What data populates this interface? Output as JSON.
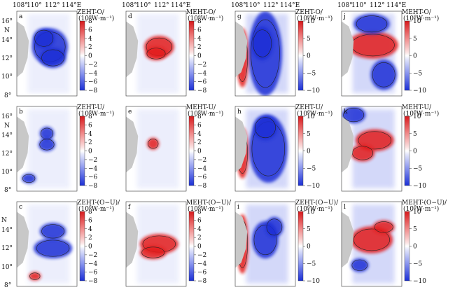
{
  "figure": {
    "lon_ticks": [
      "108°",
      "110°",
      "112°",
      "114°E"
    ],
    "lat_ticks": [
      "16°",
      "14°",
      "12°",
      "10°",
      "8°"
    ],
    "lat_ticks_top": [
      "16°",
      "14°",
      "12°",
      "10°"
    ],
    "lat_unit": "N",
    "colors": {
      "neg": "#1b2fd6",
      "pos": "#e31a1c",
      "land": "#c8c8c8"
    }
  },
  "chart_data": [
    {
      "type": "heatmap",
      "panel": "a",
      "title_line1": "ZEHT-O/",
      "title_line2": "(10",
      "exp": "6",
      "title_unit": "W·m⁻¹)",
      "cbar_ticks": [
        "8",
        "6",
        "4",
        "2",
        "0",
        "−2",
        "−4",
        "−6",
        "−8"
      ],
      "vmin": -8,
      "vmax": 8,
      "ylim": [
        8,
        17
      ],
      "xlim": [
        107.5,
        115
      ]
    },
    {
      "type": "heatmap",
      "panel": "d",
      "title_line1": "MEHT-O/",
      "title_line2": "(10",
      "exp": "6",
      "title_unit": "W·m⁻¹)",
      "cbar_ticks": [
        "8",
        "6",
        "4",
        "2",
        "0",
        "−2",
        "−4",
        "−6",
        "−8"
      ],
      "vmin": -8,
      "vmax": 8
    },
    {
      "type": "heatmap",
      "panel": "g",
      "title_line1": "ZEHT-O/",
      "title_line2": "(10",
      "exp": "6",
      "title_unit": "W·m⁻¹)",
      "cbar_ticks": [
        "10",
        "5",
        "0",
        "−5",
        "−10"
      ],
      "vmin": -10,
      "vmax": 10
    },
    {
      "type": "heatmap",
      "panel": "j",
      "title_line1": "MEHT-O/",
      "title_line2": "(10",
      "exp": "6",
      "title_unit": "W·m⁻¹)",
      "cbar_ticks": [
        "10",
        "5",
        "0",
        "−5",
        "−10"
      ],
      "vmin": -10,
      "vmax": 10
    },
    {
      "type": "heatmap",
      "panel": "b",
      "title_line1": "ZEHT-U/",
      "title_line2": "(10",
      "exp": "6",
      "title_unit": "W·m⁻¹)",
      "cbar_ticks": [
        "8",
        "6",
        "4",
        "2",
        "0",
        "−2",
        "−4",
        "−6",
        "−8"
      ],
      "vmin": -8,
      "vmax": 8
    },
    {
      "type": "heatmap",
      "panel": "e",
      "title_line1": "MEHT-U/",
      "title_line2": "(10",
      "exp": "6",
      "title_unit": "W·m⁻¹)",
      "cbar_ticks": [
        "8",
        "6",
        "4",
        "2",
        "0",
        "−2",
        "−4",
        "−6",
        "−8"
      ],
      "vmin": -8,
      "vmax": 8
    },
    {
      "type": "heatmap",
      "panel": "h",
      "title_line1": "ZEHT-U/",
      "title_line2": "(10",
      "exp": "6",
      "title_unit": "W·m⁻¹)",
      "cbar_ticks": [
        "10",
        "5",
        "0",
        "−5",
        "−10"
      ],
      "vmin": -10,
      "vmax": 10
    },
    {
      "type": "heatmap",
      "panel": "k",
      "title_line1": "MEHT-U/",
      "title_line2": "(10",
      "exp": "6",
      "title_unit": "W·m⁻¹)",
      "cbar_ticks": [
        "10",
        "5",
        "0",
        "−5",
        "−10"
      ],
      "vmin": -10,
      "vmax": 10
    },
    {
      "type": "heatmap",
      "panel": "c",
      "title_line1": "ZEHT-(O−U)/",
      "title_line2": "(10",
      "exp": "6",
      "title_unit": "W·m⁻¹)",
      "cbar_ticks": [
        "8",
        "6",
        "4",
        "2",
        "0",
        "−2",
        "−4",
        "−6",
        "−8"
      ],
      "vmin": -8,
      "vmax": 8
    },
    {
      "type": "heatmap",
      "panel": "f",
      "title_line1": "MEHT-(O−U)/",
      "title_line2": "(10",
      "exp": "6",
      "title_unit": "W·m⁻¹)",
      "cbar_ticks": [
        "8",
        "6",
        "4",
        "2",
        "0",
        "−2",
        "−4",
        "−6",
        "−8"
      ],
      "vmin": -8,
      "vmax": 8
    },
    {
      "type": "heatmap",
      "panel": "i",
      "title_line1": "ZEHT-(O−U)/",
      "title_line2": "(10",
      "exp": "6",
      "title_unit": "W·m⁻¹)",
      "cbar_ticks": [
        "10",
        "5",
        "0",
        "−5",
        "−10"
      ],
      "vmin": -10,
      "vmax": 10
    },
    {
      "type": "heatmap",
      "panel": "l",
      "title_line1": "MEHT-(O−U)/",
      "title_line2": "(10",
      "exp": "6",
      "title_unit": "W·m⁻¹)",
      "cbar_ticks": [
        "10",
        "5",
        "0",
        "−5",
        "−10"
      ],
      "vmin": -10,
      "vmax": 10
    }
  ]
}
